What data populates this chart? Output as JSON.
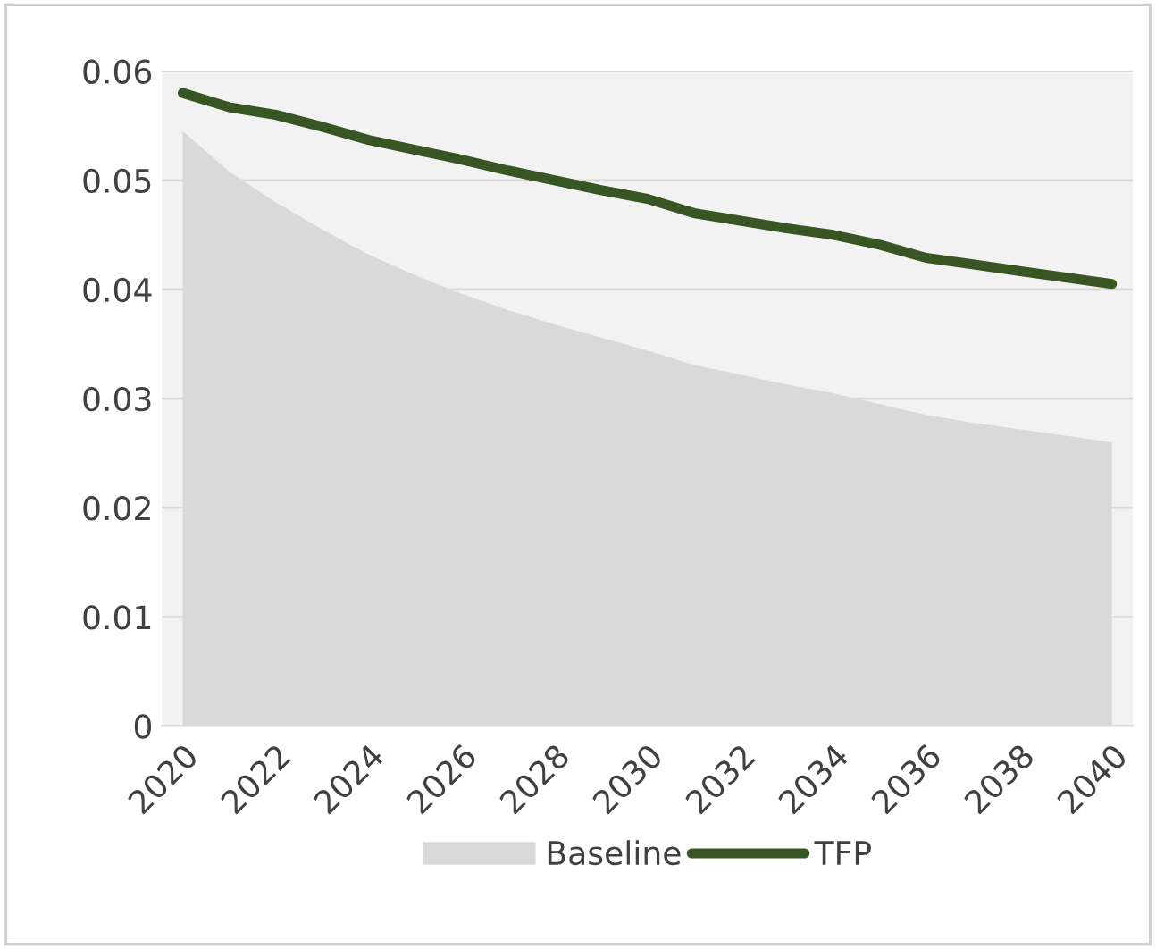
{
  "chart_data": {
    "type": "line",
    "categories": [
      "2020",
      null,
      "2022",
      null,
      "2024",
      null,
      "2026",
      null,
      "2028",
      null,
      "2030",
      null,
      "2032",
      null,
      "2034",
      null,
      "2036",
      null,
      "2038",
      null,
      "2040"
    ],
    "series": [
      {
        "name": "Baseline",
        "type": "area",
        "color": "#d9d9d9",
        "values": [
          0.0545,
          0.0508,
          0.048,
          0.0455,
          0.0432,
          0.0413,
          0.0396,
          0.0381,
          0.0368,
          0.0356,
          0.0344,
          0.0331,
          0.0322,
          0.0313,
          0.0305,
          0.0295,
          0.0285,
          0.0278,
          0.0272,
          0.0266,
          0.026
        ]
      },
      {
        "name": "TFP",
        "color": "#375623",
        "values": [
          0.058,
          0.0567,
          0.056,
          0.0549,
          0.0537,
          0.0528,
          0.0519,
          0.0509,
          0.05,
          0.0491,
          0.0483,
          0.047,
          0.0463,
          0.0456,
          0.045,
          0.0441,
          0.0429,
          0.0423,
          0.0417,
          0.0411,
          0.0405
        ]
      }
    ],
    "ylim": [
      0,
      0.06
    ],
    "yticks": [
      {
        "value": 0,
        "label": "0"
      },
      0.01,
      0.02,
      0.03,
      0.04,
      0.05,
      0.06
    ],
    "grid": "y",
    "legend": "bottom",
    "marker": "none",
    "line_style": "solid"
  }
}
